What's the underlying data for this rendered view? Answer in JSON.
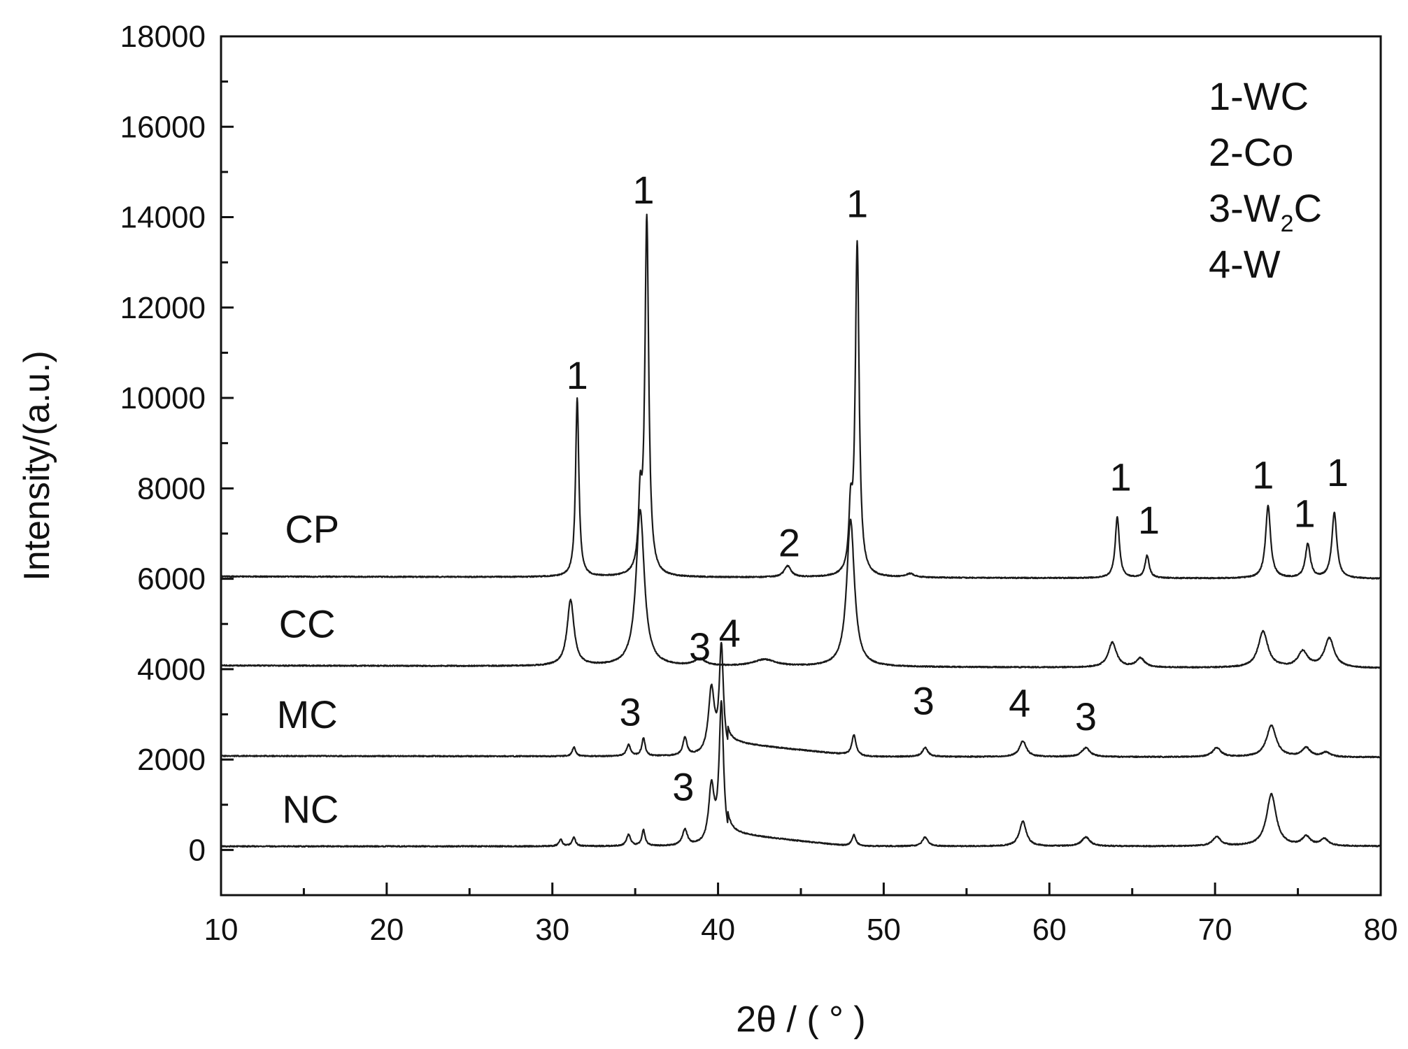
{
  "chart_data": {
    "type": "line",
    "title": "",
    "xlabel": "2θ / ( ° )",
    "ylabel": "Intensity/(a.u.)",
    "xlim": [
      10,
      80
    ],
    "ylim": [
      -1000,
      18000
    ],
    "x_ticks": [
      "10",
      "20",
      "30",
      "40",
      "50",
      "60",
      "70",
      "80"
    ],
    "y_ticks": [
      "0",
      "2000",
      "4000",
      "6000",
      "8000",
      "10000",
      "12000",
      "14000",
      "16000",
      "18000"
    ],
    "grid": false,
    "legend_position": "top-right",
    "legend": [
      {
        "text": "1-WC"
      },
      {
        "text": "2-Co"
      },
      {
        "text": "3-W",
        "sub": "2",
        "post": "C"
      },
      {
        "text": "4-W"
      }
    ],
    "series": [
      {
        "name": "CP",
        "baseline": 6050,
        "end_baseline": 6000,
        "peaks": [
          {
            "x": 31.5,
            "height": 3950,
            "width": 0.12
          },
          {
            "x": 35.3,
            "height": 1450,
            "width": 0.12
          },
          {
            "x": 35.7,
            "height": 7900,
            "width": 0.14
          },
          {
            "x": 44.2,
            "height": 250,
            "width": 0.25
          },
          {
            "x": 48.0,
            "height": 1250,
            "width": 0.12
          },
          {
            "x": 48.4,
            "height": 7350,
            "width": 0.14
          },
          {
            "x": 51.6,
            "height": 80,
            "width": 0.3
          },
          {
            "x": 64.1,
            "height": 1350,
            "width": 0.15
          },
          {
            "x": 65.9,
            "height": 500,
            "width": 0.15
          },
          {
            "x": 73.2,
            "height": 1600,
            "width": 0.18
          },
          {
            "x": 75.6,
            "height": 750,
            "width": 0.18
          },
          {
            "x": 77.2,
            "height": 1450,
            "width": 0.18
          }
        ]
      },
      {
        "name": "CC",
        "baseline": 4080,
        "end_baseline": 4020,
        "peaks": [
          {
            "x": 31.1,
            "height": 1450,
            "width": 0.25
          },
          {
            "x": 35.3,
            "height": 3450,
            "width": 0.3
          },
          {
            "x": 38.9,
            "height": 150,
            "width": 0.4
          },
          {
            "x": 42.8,
            "height": 150,
            "width": 0.8
          },
          {
            "x": 48.0,
            "height": 3250,
            "width": 0.28
          },
          {
            "x": 63.8,
            "height": 550,
            "width": 0.3
          },
          {
            "x": 65.5,
            "height": 200,
            "width": 0.3
          },
          {
            "x": 72.9,
            "height": 800,
            "width": 0.35
          },
          {
            "x": 75.3,
            "height": 350,
            "width": 0.35
          },
          {
            "x": 76.9,
            "height": 650,
            "width": 0.35
          }
        ]
      },
      {
        "name": "MC",
        "baseline": 2080,
        "end_baseline": 2050,
        "peaks": [
          {
            "x": 31.3,
            "height": 200,
            "width": 0.12
          },
          {
            "x": 34.6,
            "height": 250,
            "width": 0.15
          },
          {
            "x": 35.5,
            "height": 400,
            "width": 0.12
          },
          {
            "x": 38.0,
            "height": 400,
            "width": 0.15
          },
          {
            "x": 39.6,
            "height": 1450,
            "width": 0.22
          },
          {
            "x": 40.2,
            "height": 2350,
            "width": 0.15
          },
          {
            "x": 48.2,
            "height": 450,
            "width": 0.15
          },
          {
            "x": 52.5,
            "height": 200,
            "width": 0.2
          },
          {
            "x": 58.4,
            "height": 350,
            "width": 0.25
          },
          {
            "x": 62.2,
            "height": 200,
            "width": 0.3
          },
          {
            "x": 70.1,
            "height": 200,
            "width": 0.3
          },
          {
            "x": 73.4,
            "height": 700,
            "width": 0.35
          },
          {
            "x": 75.5,
            "height": 200,
            "width": 0.3
          },
          {
            "x": 76.7,
            "height": 100,
            "width": 0.3
          }
        ],
        "hump": {
          "from": 40.6,
          "to": 49.0,
          "height": 300
        }
      },
      {
        "name": "NC",
        "baseline": 80,
        "end_baseline": 80,
        "peaks": [
          {
            "x": 30.5,
            "height": 150,
            "width": 0.12
          },
          {
            "x": 31.3,
            "height": 200,
            "width": 0.12
          },
          {
            "x": 34.6,
            "height": 250,
            "width": 0.15
          },
          {
            "x": 35.5,
            "height": 350,
            "width": 0.12
          },
          {
            "x": 38.0,
            "height": 350,
            "width": 0.18
          },
          {
            "x": 39.6,
            "height": 1250,
            "width": 0.2
          },
          {
            "x": 40.2,
            "height": 3100,
            "width": 0.16
          },
          {
            "x": 48.2,
            "height": 250,
            "width": 0.15
          },
          {
            "x": 52.5,
            "height": 200,
            "width": 0.2
          },
          {
            "x": 58.4,
            "height": 550,
            "width": 0.25
          },
          {
            "x": 62.2,
            "height": 200,
            "width": 0.3
          },
          {
            "x": 70.1,
            "height": 200,
            "width": 0.3
          },
          {
            "x": 73.4,
            "height": 1150,
            "width": 0.35
          },
          {
            "x": 75.5,
            "height": 200,
            "width": 0.3
          },
          {
            "x": 76.6,
            "height": 150,
            "width": 0.3
          }
        ],
        "hump": {
          "from": 40.6,
          "to": 48.0,
          "height": 280
        }
      }
    ],
    "series_labels": [
      {
        "text": "CP",
        "x": 15.5,
        "y": 6800
      },
      {
        "text": "CC",
        "x": 15.2,
        "y": 4700
      },
      {
        "text": "MC",
        "x": 15.2,
        "y": 2700
      },
      {
        "text": "NC",
        "x": 15.4,
        "y": 600
      }
    ],
    "annotations": [
      {
        "text": "1",
        "x": 31.5,
        "y": 10200
      },
      {
        "text": "1",
        "x": 35.5,
        "y": 14300
      },
      {
        "text": "1",
        "x": 48.4,
        "y": 14000
      },
      {
        "text": "2",
        "x": 44.3,
        "y": 6500
      },
      {
        "text": "1",
        "x": 64.3,
        "y": 7950
      },
      {
        "text": "1",
        "x": 66.0,
        "y": 7000
      },
      {
        "text": "1",
        "x": 72.9,
        "y": 8000
      },
      {
        "text": "1",
        "x": 75.4,
        "y": 7150
      },
      {
        "text": "1",
        "x": 77.4,
        "y": 8050
      },
      {
        "text": "3",
        "x": 38.9,
        "y": 4200
      },
      {
        "text": "4",
        "x": 40.7,
        "y": 4500
      },
      {
        "text": "3",
        "x": 34.7,
        "y": 2750
      },
      {
        "text": "3",
        "x": 52.4,
        "y": 3000
      },
      {
        "text": "4",
        "x": 58.2,
        "y": 2950
      },
      {
        "text": "3",
        "x": 62.2,
        "y": 2650
      },
      {
        "text": "3",
        "x": 37.9,
        "y": 1100
      }
    ]
  }
}
